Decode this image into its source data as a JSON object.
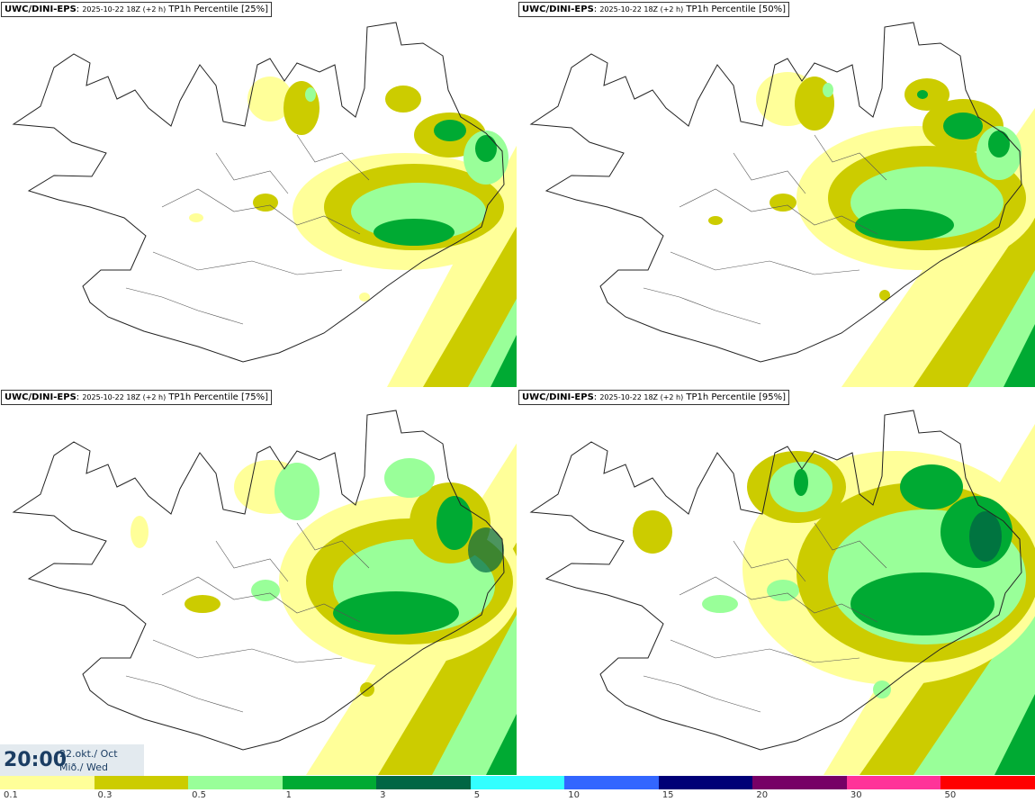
{
  "panels": [
    {
      "model": "UWC/DINI-EPS",
      "run": "2025-10-22 18Z (+2 h)",
      "field": "TP1h Percentile [25%]"
    },
    {
      "model": "UWC/DINI-EPS",
      "run": "2025-10-22 18Z (+2 h)",
      "field": "TP1h Percentile [50%]"
    },
    {
      "model": "UWC/DINI-EPS",
      "run": "2025-10-22 18Z (+2 h)",
      "field": "TP1h Percentile [75%]"
    },
    {
      "model": "UWC/DINI-EPS",
      "run": "2025-10-22 18Z (+2 h)",
      "field": "TP1h Percentile [95%]"
    }
  ],
  "valid_time": {
    "hour": "20:00",
    "date_line1": "22.okt./ Oct",
    "date_line2": "Mið./ Wed"
  },
  "legend": {
    "labels": [
      "0.1",
      "0.3",
      "0.5",
      "1",
      "3",
      "5",
      "10",
      "15",
      "20",
      "30",
      "50"
    ],
    "colors": [
      "#ffff99",
      "#cccc00",
      "#99ff99",
      "#00aa33",
      "#006644",
      "#33ffff",
      "#3366ff",
      "#000077",
      "#770066",
      "#ff3399",
      "#ff0000"
    ]
  },
  "colors": {
    "coast": "#222222",
    "sea": "#ffffff",
    "title_text": "#1b3d63"
  }
}
